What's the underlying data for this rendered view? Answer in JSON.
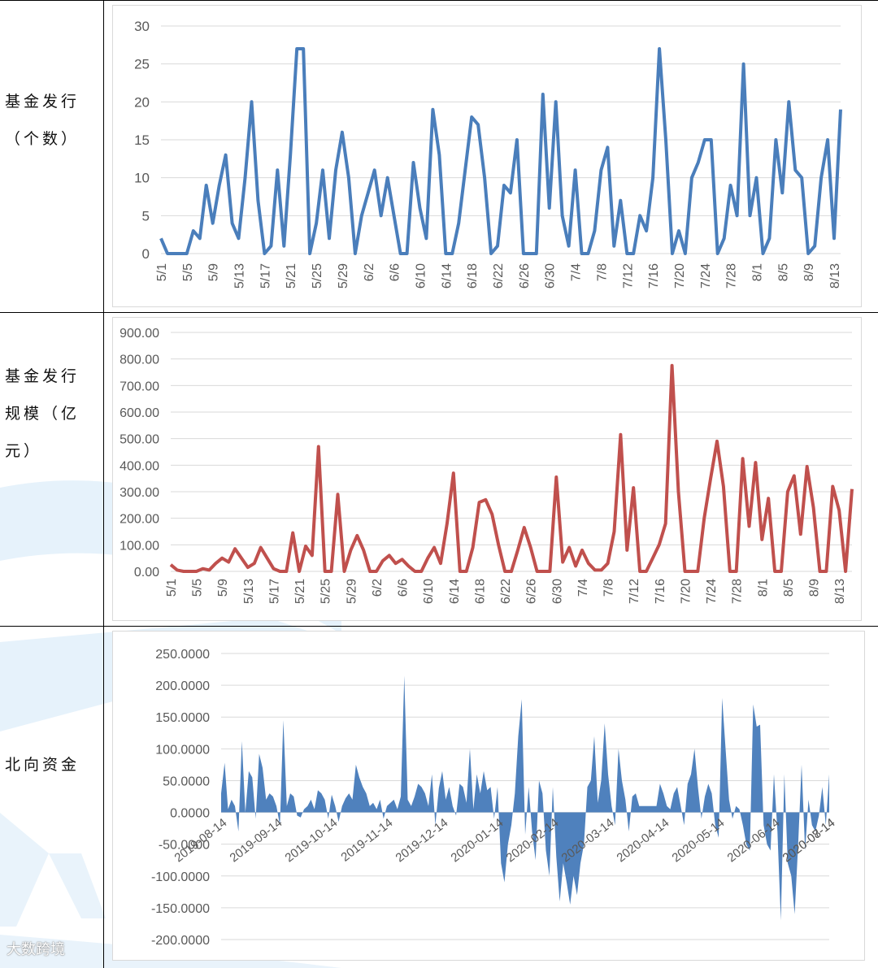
{
  "labels": {
    "row1": [
      "基金发行",
      "（个数）"
    ],
    "row2": [
      "基金发行",
      "规模（亿",
      "元）"
    ],
    "row3": [
      "北向资金"
    ]
  },
  "watermark": "大数跨境",
  "colors": {
    "blue_line": "#4a7ebb",
    "red_line": "#c0504d",
    "area_fill": "#4f81bd",
    "gridline": "#d9d9d9"
  },
  "chart_data": [
    {
      "type": "line",
      "title": "",
      "ylim": [
        0,
        30
      ],
      "yticks": [
        "0",
        "5",
        "10",
        "15",
        "20",
        "25",
        "30"
      ],
      "xticks": [
        "5/1",
        "5/5",
        "5/9",
        "5/13",
        "5/17",
        "5/21",
        "5/25",
        "5/29",
        "6/2",
        "6/6",
        "6/10",
        "6/14",
        "6/18",
        "6/22",
        "6/26",
        "6/30",
        "7/4",
        "7/8",
        "7/12",
        "7/16",
        "7/20",
        "7/24",
        "7/28",
        "8/1",
        "8/5",
        "8/9",
        "8/13"
      ],
      "series": [
        {
          "values": [
            2,
            0,
            0,
            0,
            0,
            3,
            2,
            9,
            4,
            9,
            13,
            4,
            2,
            10,
            20,
            7,
            0,
            1,
            11,
            1,
            13,
            27,
            27,
            0,
            4,
            11,
            2,
            11,
            16,
            10,
            0,
            5,
            8,
            11,
            5,
            10,
            5,
            0,
            0,
            12,
            6,
            2,
            19,
            13,
            0,
            0,
            4,
            11,
            18,
            17,
            10,
            0,
            1,
            9,
            8,
            15,
            0,
            0,
            0,
            21,
            6,
            20,
            5,
            1,
            11,
            0,
            0,
            3,
            11,
            14,
            1,
            7,
            0,
            0,
            5,
            3,
            10,
            27,
            15,
            0,
            3,
            0,
            10,
            12,
            15,
            15,
            0,
            2,
            9,
            5,
            25,
            5,
            10,
            0,
            2,
            15,
            8,
            20,
            11,
            10,
            0,
            1,
            10,
            15,
            2,
            19
          ]
        }
      ]
    },
    {
      "type": "line",
      "title": "",
      "ylim": [
        0,
        900
      ],
      "yticks": [
        "0.00",
        "100.00",
        "200.00",
        "300.00",
        "400.00",
        "500.00",
        "600.00",
        "700.00",
        "800.00",
        "900.00"
      ],
      "xticks": [
        "5/1",
        "5/5",
        "5/9",
        "5/13",
        "5/17",
        "5/21",
        "5/25",
        "5/29",
        "6/2",
        "6/6",
        "6/10",
        "6/14",
        "6/18",
        "6/22",
        "6/26",
        "6/30",
        "7/4",
        "7/8",
        "7/12",
        "7/16",
        "7/20",
        "7/24",
        "7/28",
        "8/1",
        "8/5",
        "8/9",
        "8/13"
      ],
      "series": [
        {
          "values": [
            25,
            5,
            0,
            0,
            0,
            10,
            5,
            30,
            50,
            35,
            85,
            50,
            15,
            30,
            90,
            50,
            10,
            0,
            0,
            145,
            0,
            95,
            60,
            470,
            0,
            0,
            290,
            0,
            80,
            135,
            80,
            0,
            0,
            40,
            60,
            30,
            45,
            20,
            0,
            0,
            50,
            90,
            30,
            180,
            370,
            0,
            0,
            90,
            260,
            270,
            215,
            100,
            0,
            0,
            80,
            165,
            90,
            0,
            0,
            0,
            355,
            35,
            90,
            20,
            80,
            30,
            5,
            5,
            30,
            150,
            515,
            80,
            315,
            0,
            0,
            50,
            100,
            180,
            775,
            300,
            0,
            0,
            0,
            200,
            350,
            490,
            320,
            0,
            0,
            425,
            170,
            410,
            120,
            275,
            0,
            0,
            300,
            360,
            140,
            395,
            240,
            0,
            0,
            320,
            230,
            0,
            310
          ]
        }
      ]
    },
    {
      "type": "area",
      "title": "",
      "ylim": [
        -200,
        250
      ],
      "yticks": [
        "-200.0000",
        "-150.0000",
        "-100.0000",
        "-50.0000",
        "0.0000",
        "50.0000",
        "100.0000",
        "150.0000",
        "200.0000",
        "250.0000"
      ],
      "xticks": [
        "2019-08-14",
        "2019-09-14",
        "2019-10-14",
        "2019-11-14",
        "2019-12-14",
        "2020-01-14",
        "2020-02-14",
        "2020-03-14",
        "2020-04-14",
        "2020-05-14",
        "2020-06-14",
        "2020-07-14",
        "2020-08-14"
      ],
      "series": [
        {
          "values": [
            30,
            78,
            5,
            20,
            10,
            -30,
            112,
            0,
            65,
            55,
            -10,
            92,
            70,
            20,
            30,
            25,
            10,
            -20,
            145,
            10,
            30,
            25,
            -5,
            -8,
            5,
            10,
            20,
            5,
            35,
            30,
            20,
            -10,
            28,
            10,
            -15,
            10,
            22,
            30,
            20,
            75,
            55,
            40,
            30,
            10,
            15,
            5,
            20,
            -10,
            10,
            15,
            20,
            5,
            25,
            215,
            20,
            10,
            25,
            45,
            40,
            30,
            10,
            60,
            -20,
            38,
            65,
            20,
            40,
            10,
            -5,
            45,
            40,
            15,
            100,
            5,
            60,
            30,
            65,
            35,
            40,
            -10,
            40,
            -80,
            -110,
            -50,
            -20,
            30,
            120,
            178,
            -35,
            40,
            -30,
            -75,
            50,
            30,
            -60,
            -100,
            40,
            -70,
            -140,
            -80,
            -110,
            -145,
            -100,
            -130,
            -80,
            -50,
            40,
            50,
            120,
            15,
            50,
            140,
            60,
            10,
            -20,
            100,
            50,
            20,
            -30,
            25,
            30,
            10,
            10,
            10,
            10,
            10,
            10,
            45,
            30,
            10,
            5,
            30,
            40,
            10,
            -20,
            45,
            60,
            100,
            40,
            -10,
            25,
            45,
            30,
            -20,
            -40,
            180,
            100,
            20,
            -10,
            10,
            5,
            -20,
            -50,
            -60,
            170,
            135,
            138,
            -20,
            -50,
            -60,
            60,
            -30,
            -170,
            60,
            -80,
            -100,
            -160,
            -50,
            75,
            -60,
            20,
            -20,
            -30,
            -5,
            40,
            -20,
            60
          ]
        }
      ]
    }
  ]
}
